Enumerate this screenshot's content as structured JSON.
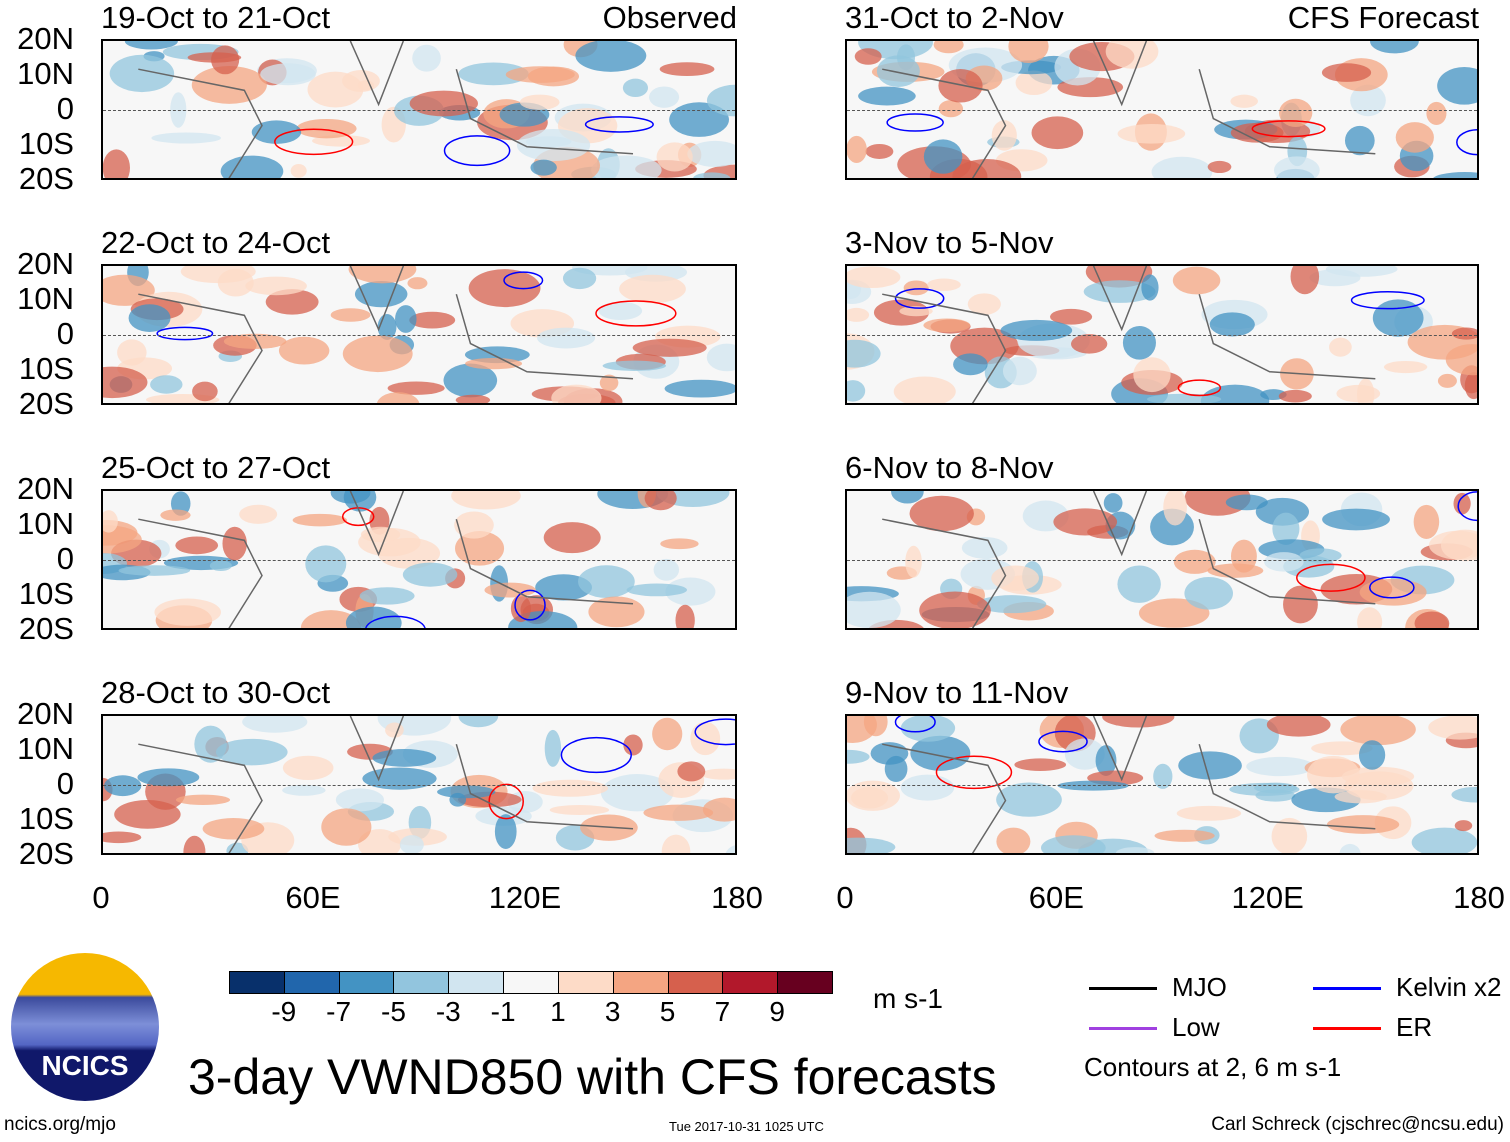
{
  "panels": {
    "observed_label": "Observed",
    "forecast_label": "CFS Forecast",
    "left": [
      "19-Oct to 21-Oct",
      "22-Oct to 24-Oct",
      "25-Oct to 27-Oct",
      "28-Oct to 30-Oct"
    ],
    "right": [
      "31-Oct to 2-Nov",
      "3-Nov to 5-Nov",
      "6-Nov to 8-Nov",
      "9-Nov to 11-Nov"
    ]
  },
  "lat_ticks": [
    "20N",
    "10N",
    "0",
    "10S",
    "20S"
  ],
  "lon_ticks": [
    "0",
    "60E",
    "120E",
    "180"
  ],
  "colorbar": {
    "labels": [
      "-9",
      "-7",
      "-5",
      "-3",
      "-1",
      "1",
      "3",
      "5",
      "7",
      "9"
    ],
    "colors": [
      "#08306b",
      "#2166ac",
      "#4393c3",
      "#92c5de",
      "#d1e5f0",
      "#f7f7f7",
      "#fddbc7",
      "#f4a582",
      "#d6604d",
      "#b2182b",
      "#67001f"
    ],
    "units": "m s-1"
  },
  "legend": {
    "items": [
      {
        "label": "MJO",
        "color": "#000000"
      },
      {
        "label": "Kelvin x2",
        "color": "#0000ff"
      },
      {
        "label": "Low",
        "color": "#a040e0"
      },
      {
        "label": "ER",
        "color": "#ff0000"
      }
    ],
    "contours": "Contours at 2, 6 m s-1"
  },
  "logo_text": "NCICS",
  "title": "3-day VWND850 with CFS forecasts",
  "footer": {
    "url": "ncics.org/mjo",
    "timestamp": "Tue 2017-10-31 1025 UTC",
    "credit": "Carl Schreck (cjschrec@ncsu.edu)"
  }
}
